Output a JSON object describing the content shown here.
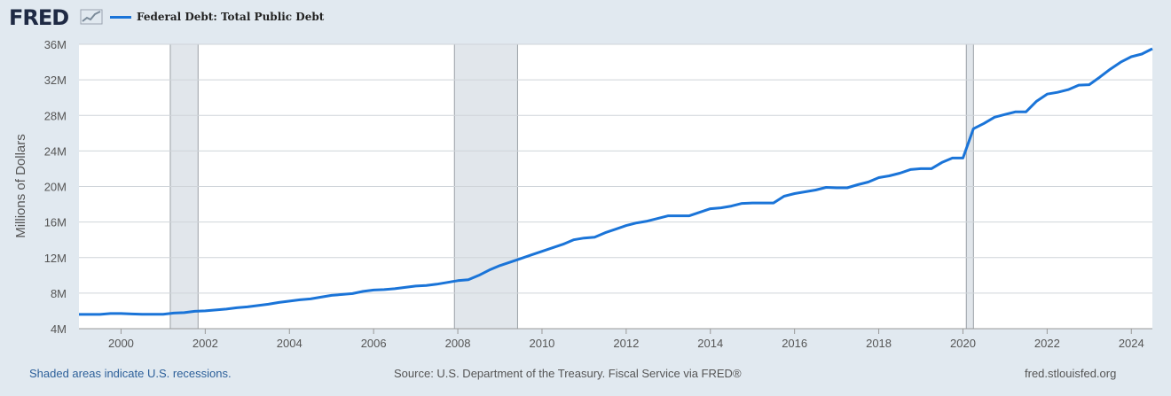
{
  "logo": "FRED",
  "legend_label": "Federal Debt: Total Public Debt",
  "footer": {
    "recession_note": "Shaded areas indicate U.S. recessions.",
    "source": "Source: U.S. Department of the Treasury. Fiscal Service via FRED®",
    "site": "fred.stlouisfed.org"
  },
  "colors": {
    "line": "#1a74d8",
    "recession": "#e1e6eb",
    "background": "#e1e9f0",
    "plot": "#ffffff"
  },
  "chart_data": {
    "type": "line",
    "ylabel": "Millions of Dollars",
    "ylim": [
      4,
      36
    ],
    "xlim": [
      1999.0,
      2024.5
    ],
    "y_ticks": [
      4,
      8,
      12,
      16,
      20,
      24,
      28,
      32,
      36
    ],
    "y_tick_labels": [
      "4M",
      "8M",
      "12M",
      "16M",
      "20M",
      "24M",
      "28M",
      "32M",
      "36M"
    ],
    "x_ticks": [
      2000,
      2002,
      2004,
      2006,
      2008,
      2010,
      2012,
      2014,
      2016,
      2018,
      2020,
      2022,
      2024
    ],
    "x_tick_labels": [
      "2000",
      "2002",
      "2004",
      "2006",
      "2008",
      "2010",
      "2012",
      "2014",
      "2016",
      "2018",
      "2020",
      "2022",
      "2024"
    ],
    "grid": true,
    "recessions": [
      [
        2001.17,
        2001.83
      ],
      [
        2007.92,
        2009.42
      ],
      [
        2020.08,
        2020.25
      ]
    ],
    "series": [
      {
        "name": "Federal Debt: Total Public Debt",
        "x": [
          1999.0,
          1999.5,
          1999.75,
          2000.0,
          2000.25,
          2000.5,
          2001.0,
          2001.25,
          2001.5,
          2001.75,
          2002.0,
          2002.25,
          2002.5,
          2002.75,
          2003.0,
          2003.25,
          2003.5,
          2003.75,
          2004.0,
          2004.25,
          2004.5,
          2004.75,
          2005.0,
          2005.25,
          2005.5,
          2005.75,
          2006.0,
          2006.25,
          2006.5,
          2006.75,
          2007.0,
          2007.25,
          2007.5,
          2007.75,
          2008.0,
          2008.25,
          2008.5,
          2008.75,
          2009.0,
          2009.25,
          2009.5,
          2009.75,
          2010.0,
          2010.25,
          2010.5,
          2010.75,
          2011.0,
          2011.25,
          2011.5,
          2011.75,
          2012.0,
          2012.25,
          2012.5,
          2012.75,
          2013.0,
          2013.25,
          2013.5,
          2013.75,
          2014.0,
          2014.25,
          2014.5,
          2014.75,
          2015.0,
          2015.25,
          2015.5,
          2015.75,
          2016.0,
          2016.25,
          2016.5,
          2016.75,
          2017.0,
          2017.25,
          2017.5,
          2017.75,
          2018.0,
          2018.25,
          2018.5,
          2018.75,
          2019.0,
          2019.25,
          2019.5,
          2019.75,
          2020.0,
          2020.25,
          2020.5,
          2020.75,
          2021.0,
          2021.25,
          2021.5,
          2021.75,
          2022.0,
          2022.25,
          2022.5,
          2022.75,
          2023.0,
          2023.25,
          2023.5,
          2023.75,
          2024.0,
          2024.25,
          2024.5
        ],
        "y": [
          5.6,
          5.6,
          5.7,
          5.7,
          5.65,
          5.62,
          5.62,
          5.75,
          5.8,
          5.95,
          6.0,
          6.1,
          6.2,
          6.35,
          6.45,
          6.6,
          6.75,
          6.95,
          7.1,
          7.25,
          7.35,
          7.55,
          7.75,
          7.85,
          7.95,
          8.2,
          8.35,
          8.4,
          8.5,
          8.65,
          8.8,
          8.85,
          9.0,
          9.2,
          9.4,
          9.5,
          10.0,
          10.6,
          11.1,
          11.5,
          11.9,
          12.3,
          12.7,
          13.1,
          13.5,
          14.0,
          14.2,
          14.3,
          14.8,
          15.2,
          15.6,
          15.9,
          16.1,
          16.4,
          16.7,
          16.7,
          16.7,
          17.1,
          17.5,
          17.6,
          17.8,
          18.1,
          18.15,
          18.15,
          18.15,
          18.9,
          19.2,
          19.4,
          19.6,
          19.9,
          19.85,
          19.85,
          20.2,
          20.5,
          21.0,
          21.2,
          21.5,
          21.9,
          22.0,
          22.0,
          22.7,
          23.2,
          23.2,
          26.5,
          27.1,
          27.8,
          28.1,
          28.4,
          28.4,
          29.6,
          30.4,
          30.6,
          30.9,
          31.4,
          31.45,
          32.3,
          33.2,
          34.0,
          34.6,
          34.9,
          35.5
        ]
      }
    ]
  }
}
